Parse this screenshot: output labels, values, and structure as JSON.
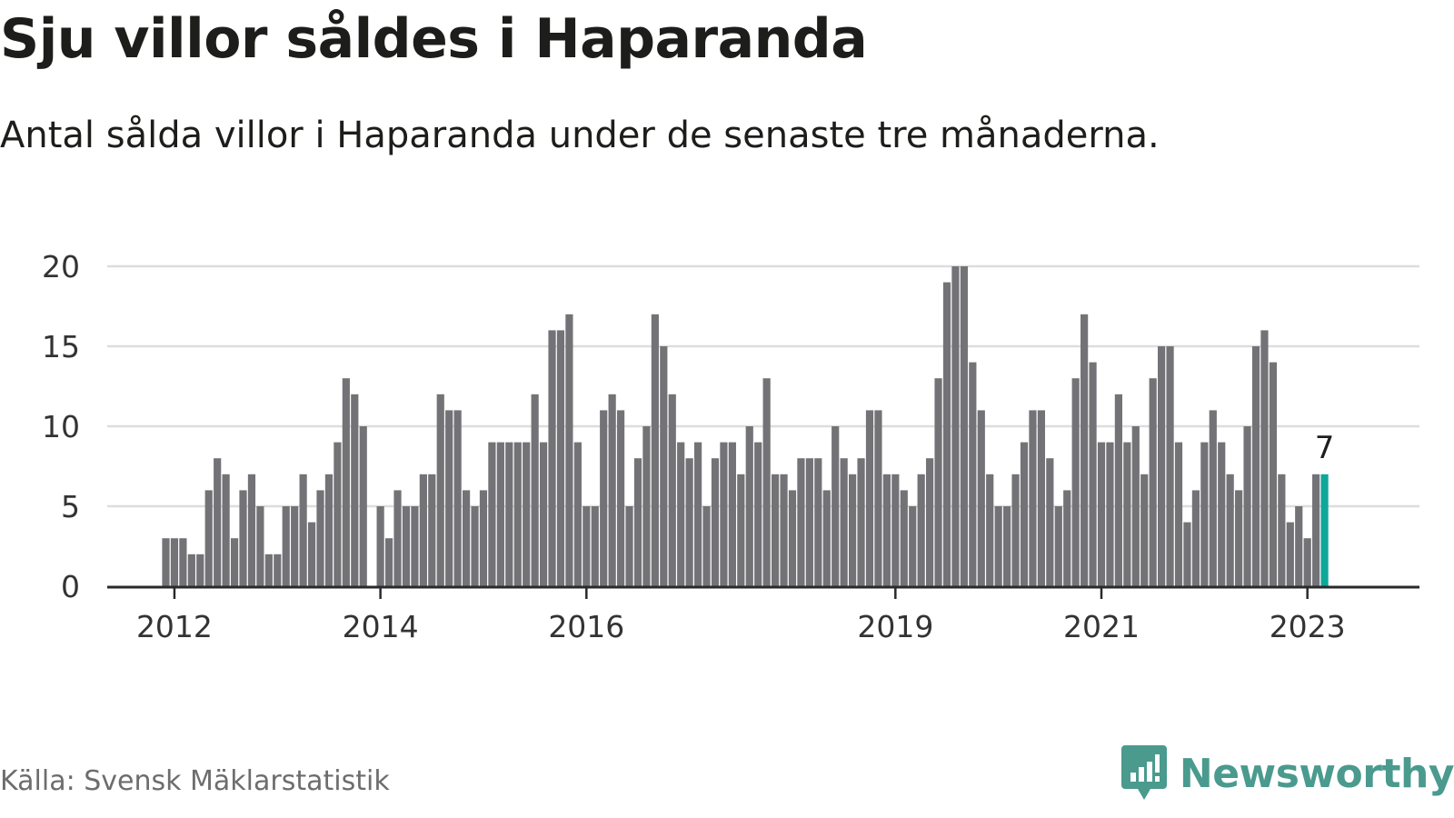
{
  "header": {
    "title": "Sju villor såldes i Haparanda",
    "subtitle": "Antal sålda villor i Haparanda under de senaste tre månaderna."
  },
  "footer": {
    "source": "Källa: Svensk Mäklarstatistik",
    "brand": "Newsworthy",
    "brand_icon": "bar-chart-speech-bubble-icon"
  },
  "colors": {
    "bar": "#737377",
    "highlight": "#0fa79a",
    "grid": "#dddddd",
    "axis": "#2a2a2a",
    "text": "#1d1d1b",
    "muted": "#6d6d6d",
    "brand": "#4a9a8e"
  },
  "chart_data": {
    "type": "bar",
    "title": "Sju villor såldes i Haparanda",
    "subtitle": "Antal sålda villor i Haparanda under de senaste tre månaderna.",
    "x_ticks": [
      "2012",
      "2014",
      "2016",
      "2019",
      "2021",
      "2023"
    ],
    "y_ticks": [
      0,
      5,
      10,
      15,
      20
    ],
    "ylim": [
      0,
      20
    ],
    "grid": true,
    "values": [
      3,
      3,
      3,
      2,
      2,
      6,
      8,
      7,
      3,
      6,
      7,
      5,
      2,
      2,
      5,
      5,
      7,
      4,
      6,
      7,
      9,
      13,
      12,
      10,
      0,
      5,
      3,
      6,
      5,
      5,
      7,
      7,
      12,
      11,
      11,
      6,
      5,
      6,
      9,
      9,
      9,
      9,
      9,
      12,
      9,
      16,
      16,
      17,
      9,
      5,
      5,
      11,
      12,
      11,
      5,
      8,
      10,
      17,
      15,
      12,
      9,
      8,
      9,
      5,
      8,
      9,
      9,
      7,
      10,
      9,
      13,
      7,
      7,
      6,
      8,
      8,
      8,
      6,
      10,
      8,
      7,
      8,
      11,
      11,
      7,
      7,
      6,
      5,
      7,
      8,
      13,
      19,
      20,
      20,
      14,
      11,
      7,
      5,
      5,
      7,
      9,
      11,
      11,
      8,
      5,
      6,
      13,
      17,
      14,
      9,
      9,
      12,
      9,
      10,
      7,
      13,
      15,
      15,
      9,
      4,
      6,
      9,
      11,
      9,
      7,
      6,
      10,
      15,
      16,
      14,
      7,
      4,
      5,
      3,
      7,
      7
    ],
    "tick_index": {
      "2012": 1,
      "2014": 25,
      "2016": 49,
      "2019": 85,
      "2021": 109,
      "2023": 133
    },
    "highlight_index": 135,
    "highlight_label": "7"
  }
}
